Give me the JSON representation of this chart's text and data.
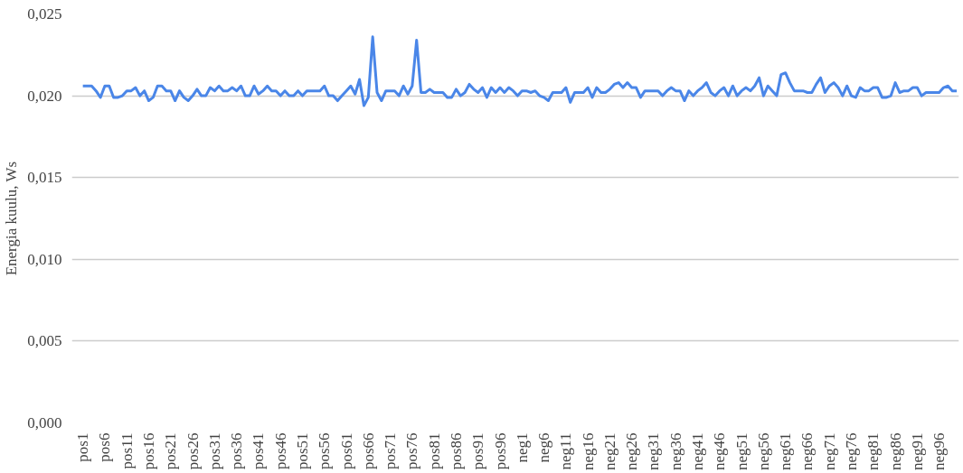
{
  "chart_data": {
    "type": "line",
    "ylabel": "Energia kuulu, Ws",
    "categories": [
      "pos1",
      null,
      null,
      null,
      null,
      "pos6",
      null,
      null,
      null,
      null,
      "pos11",
      null,
      null,
      null,
      null,
      "pos16",
      null,
      null,
      null,
      null,
      "pos21",
      null,
      null,
      null,
      null,
      "pos26",
      null,
      null,
      null,
      null,
      "pos31",
      null,
      null,
      null,
      null,
      "pos36",
      null,
      null,
      null,
      null,
      "pos41",
      null,
      null,
      null,
      null,
      "pos46",
      null,
      null,
      null,
      null,
      "pos51",
      null,
      null,
      null,
      null,
      "pos56",
      null,
      null,
      null,
      null,
      "pos61",
      null,
      null,
      null,
      null,
      "pos66",
      null,
      null,
      null,
      null,
      "pos71",
      null,
      null,
      null,
      null,
      "pos76",
      null,
      null,
      null,
      null,
      "pos81",
      null,
      null,
      null,
      null,
      "pos86",
      null,
      null,
      null,
      null,
      "pos91",
      null,
      null,
      null,
      null,
      "pos96",
      null,
      null,
      null,
      null,
      "neg1",
      null,
      null,
      null,
      null,
      "neg6",
      null,
      null,
      null,
      null,
      "neg11",
      null,
      null,
      null,
      null,
      "neg16",
      null,
      null,
      null,
      null,
      "neg21",
      null,
      null,
      null,
      null,
      "neg26",
      null,
      null,
      null,
      null,
      "neg31",
      null,
      null,
      null,
      null,
      "neg36",
      null,
      null,
      null,
      null,
      "neg41",
      null,
      null,
      null,
      null,
      "neg46",
      null,
      null,
      null,
      null,
      "neg51",
      null,
      null,
      null,
      null,
      "neg56",
      null,
      null,
      null,
      null,
      "neg61",
      null,
      null,
      null,
      null,
      "neg66",
      null,
      null,
      null,
      null,
      "neg71",
      null,
      null,
      null,
      null,
      "neg76",
      null,
      null,
      null,
      null,
      "neg81",
      null,
      null,
      null,
      null,
      "neg86",
      null,
      null,
      null,
      null,
      "neg91",
      null,
      null,
      null,
      null,
      "neg96",
      null,
      null,
      null,
      null
    ],
    "series": [
      {
        "color": "#4a86e8",
        "values": [
          0.0206,
          0.0206,
          0.0206,
          0.0203,
          0.0199,
          0.0206,
          0.0206,
          0.0199,
          0.0199,
          0.02,
          0.0203,
          0.0203,
          0.0205,
          0.02,
          0.0203,
          0.0197,
          0.0199,
          0.0206,
          0.0206,
          0.0203,
          0.0203,
          0.0197,
          0.0203,
          0.0199,
          0.0197,
          0.02,
          0.0204,
          0.02,
          0.02,
          0.0205,
          0.0203,
          0.0206,
          0.0203,
          0.0203,
          0.0205,
          0.0203,
          0.0206,
          0.02,
          0.02,
          0.0206,
          0.0201,
          0.0203,
          0.0206,
          0.0203,
          0.0203,
          0.02,
          0.0203,
          0.02,
          0.02,
          0.0203,
          0.02,
          0.0203,
          0.0203,
          0.0203,
          0.0203,
          0.0206,
          0.02,
          0.02,
          0.0197,
          0.02,
          0.0203,
          0.0206,
          0.0201,
          0.021,
          0.0194,
          0.0199,
          0.0236,
          0.0202,
          0.0197,
          0.0203,
          0.0203,
          0.0203,
          0.02,
          0.0206,
          0.0201,
          0.0206,
          0.0234,
          0.0202,
          0.0202,
          0.0204,
          0.0202,
          0.0202,
          0.0202,
          0.0199,
          0.0199,
          0.0204,
          0.02,
          0.0202,
          0.0207,
          0.0204,
          0.0202,
          0.0205,
          0.0199,
          0.0205,
          0.0202,
          0.0205,
          0.0202,
          0.0205,
          0.0203,
          0.02,
          0.0203,
          0.0203,
          0.0202,
          0.0203,
          0.02,
          0.0199,
          0.0197,
          0.0202,
          0.0202,
          0.0202,
          0.0205,
          0.0196,
          0.0202,
          0.0202,
          0.0202,
          0.0205,
          0.0199,
          0.0205,
          0.0202,
          0.0202,
          0.0204,
          0.0207,
          0.0208,
          0.0205,
          0.0208,
          0.0205,
          0.0205,
          0.0199,
          0.0203,
          0.0203,
          0.0203,
          0.0203,
          0.02,
          0.0203,
          0.0205,
          0.0203,
          0.0203,
          0.0197,
          0.0203,
          0.02,
          0.0203,
          0.0205,
          0.0208,
          0.0202,
          0.02,
          0.0203,
          0.0205,
          0.02,
          0.0206,
          0.02,
          0.0203,
          0.0205,
          0.0203,
          0.0206,
          0.0211,
          0.02,
          0.0206,
          0.0203,
          0.02,
          0.0213,
          0.0214,
          0.0208,
          0.0203,
          0.0203,
          0.0203,
          0.0202,
          0.0202,
          0.0207,
          0.0211,
          0.0202,
          0.0206,
          0.0208,
          0.0205,
          0.02,
          0.0206,
          0.02,
          0.0199,
          0.0205,
          0.0203,
          0.0203,
          0.0205,
          0.0205,
          0.0199,
          0.0199,
          0.02,
          0.0208,
          0.0202,
          0.0203,
          0.0203,
          0.0205,
          0.0205,
          0.02,
          0.0202,
          0.0202,
          0.0202,
          0.0202,
          0.0205,
          0.0206,
          0.0203,
          0.0203
        ]
      }
    ],
    "ylim": [
      0,
      0.025
    ],
    "yticks": [
      {
        "value": 0,
        "label": "0,000"
      },
      {
        "value": 0.005,
        "label": "0,005"
      },
      {
        "value": 0.01,
        "label": "0,010"
      },
      {
        "value": 0.015,
        "label": "0,015"
      },
      {
        "value": 0.02,
        "label": "0,020"
      },
      {
        "value": 0.025,
        "label": "0,025"
      }
    ],
    "grid": "y",
    "marker": "none",
    "line_style": "solid"
  }
}
